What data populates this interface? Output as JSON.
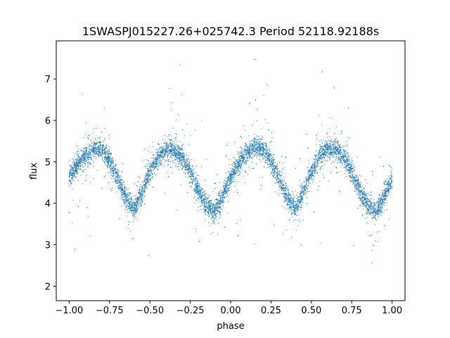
{
  "chart_data": {
    "type": "scatter",
    "title": "1SWASPJ015227.26+025742.3 Period 52118.92188s",
    "xlabel": "phase",
    "ylabel": "flux",
    "xlim": [
      -1.08,
      1.08
    ],
    "ylim": [
      1.65,
      7.92
    ],
    "xticks": [
      -1.0,
      -0.75,
      -0.5,
      -0.25,
      0.0,
      0.25,
      0.5,
      0.75,
      1.0
    ],
    "xtick_labels": [
      "−1.00",
      "−0.75",
      "−0.50",
      "−0.25",
      "0.00",
      "0.25",
      "0.50",
      "0.75",
      "1.00"
    ],
    "yticks": [
      2,
      3,
      4,
      5,
      6,
      7
    ],
    "ytick_labels": [
      "2",
      "3",
      "4",
      "5",
      "6",
      "7"
    ],
    "grid": false,
    "marker_color": "#1f77b4",
    "series": [
      {
        "x": [
          -1.0,
          -0.95,
          -0.9,
          -0.85,
          -0.8,
          -0.75,
          -0.7,
          -0.65,
          -0.6,
          -0.55,
          -0.5,
          -0.45,
          -0.4,
          -0.35,
          -0.3,
          -0.25,
          -0.2,
          -0.15,
          -0.1,
          -0.05,
          0.0,
          0.05,
          0.1,
          0.15,
          0.2,
          0.25,
          0.3,
          0.35,
          0.4,
          0.45,
          0.5,
          0.55,
          0.6,
          0.65,
          0.7,
          0.75,
          0.8,
          0.85,
          0.9,
          0.95,
          1.0
        ],
        "y": [
          4.6,
          4.95,
          5.15,
          5.3,
          5.3,
          5.05,
          4.6,
          4.15,
          3.85,
          4.25,
          4.75,
          5.1,
          5.3,
          5.3,
          5.1,
          4.75,
          4.3,
          3.95,
          3.8,
          4.15,
          4.6,
          4.95,
          5.2,
          5.35,
          5.3,
          5.05,
          4.6,
          4.15,
          3.85,
          4.25,
          4.75,
          5.1,
          5.3,
          5.3,
          5.1,
          4.75,
          4.3,
          3.95,
          3.8,
          4.15,
          4.6
        ]
      }
    ]
  }
}
